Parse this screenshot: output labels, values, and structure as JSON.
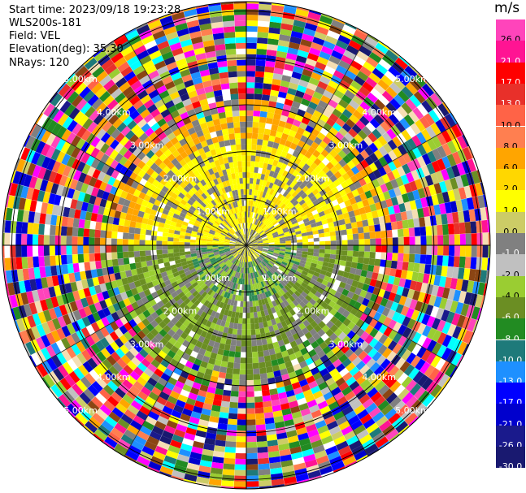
{
  "header": {
    "start_time": "Start time: 2023/09/18 19:23:28",
    "instrument": "WLS200s-181",
    "field": "Field: VEL",
    "elevation": "Elevation(deg): 35.30",
    "nrays": "NRays: 120"
  },
  "colorbar": {
    "unit": "m/s",
    "ticks": [
      "26.0",
      "21.0",
      "17.0",
      "13.0",
      "10.0",
      "8.0",
      "6.0",
      "2.0",
      "1.0",
      "0.0",
      "-1.0",
      "-2.0",
      "-4.0",
      "-6.0",
      "-8.0",
      "-10.0",
      "-13.0",
      "-17.0",
      "-21.0",
      "-26.0",
      "-30.0"
    ],
    "colors": [
      "#ff44bb",
      "#ff1493",
      "#ff0000",
      "#e8302a",
      "#ff6347",
      "#ff7f50",
      "#ffa500",
      "#ffd700",
      "#ffff00",
      "#cccc66",
      "#808080",
      "#c0c0c0",
      "#9acd32",
      "#6b8e23",
      "#228b22",
      "#1e7a7a",
      "#1e90ff",
      "#0000ff",
      "#0000cd",
      "#1a1a8c",
      "#191970"
    ]
  },
  "chart_data": {
    "type": "heatmap",
    "subtype": "polar PPI (plan position indicator)",
    "field": "VEL",
    "units": "m/s",
    "elevation_deg": 35.3,
    "n_rays": 120,
    "range_ring_labels_km": [
      "1.00km",
      "2.00km",
      "3.00km",
      "4.00km",
      "5.00km"
    ],
    "range_ring_km": [
      1,
      2,
      3,
      4,
      5
    ],
    "vmin": -30.0,
    "vmax": 26.0,
    "sectors": [
      {
        "range_km": [
          0,
          1.0
        ],
        "direction": "north",
        "value": 2.0
      },
      {
        "range_km": [
          0,
          1.0
        ],
        "direction": "south",
        "value": -2.0
      },
      {
        "range_km": [
          1.0,
          2.0
        ],
        "direction": "north",
        "value": 2.0
      },
      {
        "range_km": [
          1.0,
          2.0
        ],
        "direction": "south",
        "value": -4.0
      },
      {
        "range_km": [
          2.0,
          3.0
        ],
        "direction": "north",
        "value": 6.0
      },
      {
        "range_km": [
          2.0,
          3.0
        ],
        "direction": "south",
        "value": -2.0
      },
      {
        "range_km": [
          3.0,
          5.2
        ],
        "direction": "all",
        "value": "noise"
      }
    ]
  }
}
